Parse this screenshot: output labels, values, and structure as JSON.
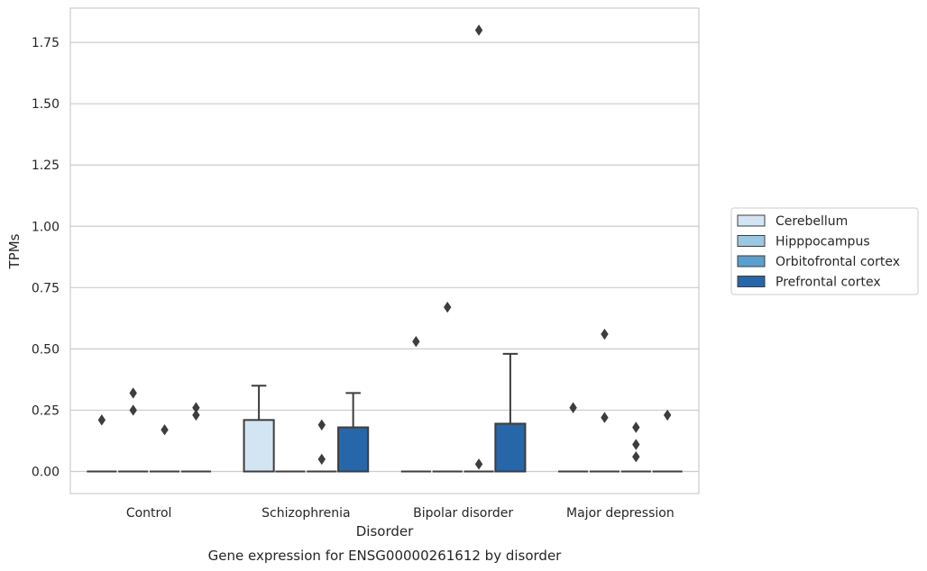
{
  "chart_data": {
    "type": "box",
    "title": "Gene expression for ENSG00000261612 by disorder",
    "xlabel": "Disorder",
    "ylabel": "TPMs",
    "ylim": [
      -0.09,
      1.89
    ],
    "yticks": [
      "0.00",
      "0.25",
      "0.50",
      "0.75",
      "1.00",
      "1.25",
      "1.50",
      "1.75"
    ],
    "grid": true,
    "legend_position": "right",
    "categories": [
      "Control",
      "Schizophrenia",
      "Bipolar disorder",
      "Major depression"
    ],
    "series": [
      {
        "name": "Cerebellum",
        "color": "#d3e4f3",
        "boxes": [
          {
            "q1": 0,
            "median": 0,
            "q3": 0,
            "whisker_low": 0,
            "whisker_high": 0,
            "outliers": [
              0.21
            ]
          },
          {
            "q1": 0,
            "median": 0,
            "q3": 0.21,
            "whisker_low": 0,
            "whisker_high": 0.35,
            "outliers": []
          },
          {
            "q1": 0,
            "median": 0,
            "q3": 0,
            "whisker_low": 0,
            "whisker_high": 0,
            "outliers": [
              0.53
            ]
          },
          {
            "q1": 0,
            "median": 0,
            "q3": 0,
            "whisker_low": 0,
            "whisker_high": 0,
            "outliers": [
              0.26
            ]
          }
        ]
      },
      {
        "name": "Hipppocampus",
        "color": "#9ac8e0",
        "boxes": [
          {
            "q1": 0,
            "median": 0,
            "q3": 0,
            "whisker_low": 0,
            "whisker_high": 0,
            "outliers": [
              0.32,
              0.25
            ]
          },
          {
            "q1": 0,
            "median": 0,
            "q3": 0,
            "whisker_low": 0,
            "whisker_high": 0,
            "outliers": []
          },
          {
            "q1": 0,
            "median": 0,
            "q3": 0,
            "whisker_low": 0,
            "whisker_high": 0,
            "outliers": [
              0.67
            ]
          },
          {
            "q1": 0,
            "median": 0,
            "q3": 0,
            "whisker_low": 0,
            "whisker_high": 0,
            "outliers": [
              0.56,
              0.22
            ]
          }
        ]
      },
      {
        "name": "Orbitofrontal cortex",
        "color": "#5a9fcd",
        "boxes": [
          {
            "q1": 0,
            "median": 0,
            "q3": 0,
            "whisker_low": 0,
            "whisker_high": 0,
            "outliers": [
              0.17
            ]
          },
          {
            "q1": 0,
            "median": 0,
            "q3": 0,
            "whisker_low": 0,
            "whisker_high": 0,
            "outliers": [
              0.19,
              0.05
            ]
          },
          {
            "q1": 0,
            "median": 0,
            "q3": 0,
            "whisker_low": 0,
            "whisker_high": 0,
            "outliers": [
              1.8,
              0.03
            ]
          },
          {
            "q1": 0,
            "median": 0,
            "q3": 0,
            "whisker_low": 0,
            "whisker_high": 0,
            "outliers": [
              0.18,
              0.11,
              0.06
            ]
          }
        ]
      },
      {
        "name": "Prefrontal cortex",
        "color": "#2766a8",
        "boxes": [
          {
            "q1": 0,
            "median": 0,
            "q3": 0,
            "whisker_low": 0,
            "whisker_high": 0,
            "outliers": [
              0.26,
              0.23
            ]
          },
          {
            "q1": 0,
            "median": 0,
            "q3": 0.18,
            "whisker_low": 0,
            "whisker_high": 0.32,
            "outliers": []
          },
          {
            "q1": 0,
            "median": 0,
            "q3": 0.195,
            "whisker_low": 0,
            "whisker_high": 0.48,
            "outliers": []
          },
          {
            "q1": 0,
            "median": 0,
            "q3": 0,
            "whisker_low": 0,
            "whisker_high": 0,
            "outliers": [
              0.23
            ]
          }
        ]
      }
    ]
  }
}
